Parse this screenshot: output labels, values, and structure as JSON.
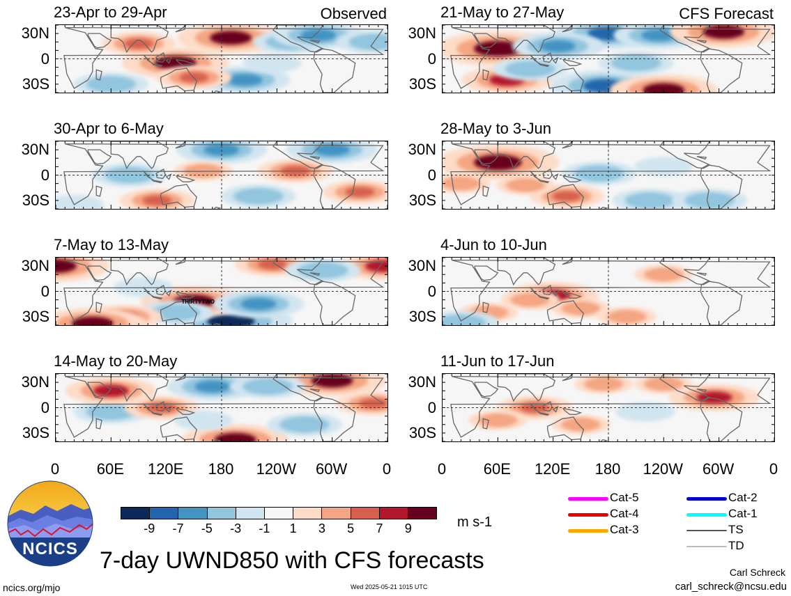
{
  "labels": {
    "observed": "Observed",
    "forecast": "CFS Forecast",
    "units": "m s-1",
    "main_title": "7-day UWND850 with CFS forecasts",
    "url": "ncics.org/mjo",
    "timestamp": "Wed 2025-05-21 1015 UTC",
    "author": "Carl Schreck",
    "email": "carl_schreck@ncsu.edu",
    "logo_text": "NCICS"
  },
  "y_ticks": [
    "30N",
    "0",
    "30S"
  ],
  "x_ticks": [
    "0",
    "60E",
    "120E",
    "180",
    "120W",
    "60W",
    "0"
  ],
  "colorbar": {
    "colors": [
      "#0b2a5a",
      "#2166ac",
      "#4393c3",
      "#92c5de",
      "#d1e5f0",
      "#f7f7f7",
      "#fddbc7",
      "#f4a582",
      "#d6604d",
      "#b2182b",
      "#67001f"
    ],
    "tick_labels": [
      "-9",
      "-7",
      "-5",
      "-3",
      "-1",
      "1",
      "3",
      "5",
      "7",
      "9"
    ]
  },
  "legend": [
    {
      "label": "Cat-5",
      "color": "#ff00ff"
    },
    {
      "label": "Cat-4",
      "color": "#ee0000"
    },
    {
      "label": "Cat-3",
      "color": "#ffa500"
    },
    {
      "label": "Cat-2",
      "color": "#0000dd"
    },
    {
      "label": "Cat-1",
      "color": "#00ffff"
    },
    {
      "label": "TS",
      "color": "#555555"
    },
    {
      "label": "TD",
      "color": "#bbbbbb"
    }
  ],
  "panels": [
    {
      "title": "23-Apr to 29-Apr",
      "kind": "observed",
      "storm": ""
    },
    {
      "title": "21-May to 27-May",
      "kind": "forecast",
      "storm": ""
    },
    {
      "title": "30-Apr to 6-May",
      "kind": "observed",
      "storm": ""
    },
    {
      "title": "28-May to 3-Jun",
      "kind": "forecast",
      "storm": ""
    },
    {
      "title": "7-May to 13-May",
      "kind": "observed",
      "storm": "THIRTYTWO"
    },
    {
      "title": "4-Jun to 10-Jun",
      "kind": "forecast",
      "storm": ""
    },
    {
      "title": "14-May to 20-May",
      "kind": "observed",
      "storm": ""
    },
    {
      "title": "11-Jun to 17-Jun",
      "kind": "forecast",
      "storm": ""
    }
  ],
  "chart_data": {
    "type": "heatmap",
    "variable": "UWND850",
    "units": "m s-1",
    "lon_range": [
      0,
      360
    ],
    "lat_range": [
      -40,
      40
    ],
    "panels": [
      {
        "period": "23-Apr to 29-Apr",
        "source": "Observed",
        "anomalies": [
          {
            "lon": 190,
            "lat": 25,
            "value": 9
          },
          {
            "lon": 130,
            "lat": -5,
            "value": 9
          },
          {
            "lon": 255,
            "lat": 20,
            "value": -5
          },
          {
            "lon": 285,
            "lat": 28,
            "value": -7
          },
          {
            "lon": 60,
            "lat": -30,
            "value": -5
          },
          {
            "lon": 205,
            "lat": -25,
            "value": -7
          },
          {
            "lon": 90,
            "lat": 18,
            "value": 5
          },
          {
            "lon": 150,
            "lat": -22,
            "value": 5
          },
          {
            "lon": 345,
            "lat": 20,
            "value": -5
          },
          {
            "lon": 235,
            "lat": -5,
            "value": -3
          }
        ]
      },
      {
        "period": "21-May to 27-May",
        "source": "CFS Forecast",
        "anomalies": [
          {
            "lon": 60,
            "lat": 12,
            "value": 11
          },
          {
            "lon": 180,
            "lat": 30,
            "value": -9
          },
          {
            "lon": 235,
            "lat": 28,
            "value": -7
          },
          {
            "lon": 305,
            "lat": 32,
            "value": 9
          },
          {
            "lon": 125,
            "lat": 15,
            "value": -7
          },
          {
            "lon": 175,
            "lat": -32,
            "value": -9
          },
          {
            "lon": 240,
            "lat": -37,
            "value": 9
          },
          {
            "lon": 70,
            "lat": -25,
            "value": 7
          },
          {
            "lon": 95,
            "lat": -12,
            "value": -5
          },
          {
            "lon": 210,
            "lat": -5,
            "value": -5
          }
        ]
      },
      {
        "period": "30-Apr to 6-May",
        "source": "Observed",
        "anomalies": [
          {
            "lon": 180,
            "lat": 30,
            "value": -7
          },
          {
            "lon": 300,
            "lat": 30,
            "value": -7
          },
          {
            "lon": 80,
            "lat": 0,
            "value": -5
          },
          {
            "lon": 110,
            "lat": -30,
            "value": 5
          },
          {
            "lon": 220,
            "lat": -25,
            "value": -5
          },
          {
            "lon": 260,
            "lat": 5,
            "value": 5
          },
          {
            "lon": 330,
            "lat": -20,
            "value": 5
          },
          {
            "lon": 160,
            "lat": 5,
            "value": 3
          },
          {
            "lon": 20,
            "lat": -35,
            "value": -3
          }
        ]
      },
      {
        "period": "28-May to 3-Jun",
        "source": "CFS Forecast",
        "anomalies": [
          {
            "lon": 60,
            "lat": 15,
            "value": 11
          },
          {
            "lon": 170,
            "lat": 2,
            "value": -5
          },
          {
            "lon": 135,
            "lat": -25,
            "value": 5
          },
          {
            "lon": 225,
            "lat": -30,
            "value": -5
          },
          {
            "lon": 90,
            "lat": -12,
            "value": 3
          },
          {
            "lon": 290,
            "lat": -30,
            "value": -5
          },
          {
            "lon": 240,
            "lat": 10,
            "value": -3
          },
          {
            "lon": 20,
            "lat": -10,
            "value": 3
          }
        ]
      },
      {
        "period": "7-May to 13-May",
        "source": "Observed",
        "anomalies": [
          {
            "lon": 190,
            "lat": -35,
            "value": -11
          },
          {
            "lon": 150,
            "lat": -12,
            "value": 9
          },
          {
            "lon": 0,
            "lat": 30,
            "value": 9
          },
          {
            "lon": 355,
            "lat": 30,
            "value": 7
          },
          {
            "lon": 235,
            "lat": 32,
            "value": 5
          },
          {
            "lon": 220,
            "lat": -15,
            "value": -7
          },
          {
            "lon": 130,
            "lat": -25,
            "value": -5
          },
          {
            "lon": 75,
            "lat": -30,
            "value": 5
          },
          {
            "lon": 40,
            "lat": -38,
            "value": 9
          },
          {
            "lon": 290,
            "lat": 25,
            "value": -5
          },
          {
            "lon": 95,
            "lat": 5,
            "value": -3
          }
        ]
      },
      {
        "period": "4-Jun to 10-Jun",
        "source": "CFS Forecast",
        "anomalies": [
          {
            "lon": 120,
            "lat": -5,
            "value": 7
          },
          {
            "lon": 95,
            "lat": -10,
            "value": 3
          },
          {
            "lon": 50,
            "lat": -25,
            "value": 3
          },
          {
            "lon": 150,
            "lat": -20,
            "value": 3
          },
          {
            "lon": 20,
            "lat": -37,
            "value": -5
          },
          {
            "lon": 240,
            "lat": 20,
            "value": 3
          },
          {
            "lon": 200,
            "lat": -30,
            "value": 3
          }
        ]
      },
      {
        "period": "14-May to 20-May",
        "source": "Observed",
        "anomalies": [
          {
            "lon": 170,
            "lat": 25,
            "value": -7
          },
          {
            "lon": 300,
            "lat": 32,
            "value": 9
          },
          {
            "lon": 230,
            "lat": 25,
            "value": -5
          },
          {
            "lon": 60,
            "lat": -5,
            "value": -5
          },
          {
            "lon": 195,
            "lat": -38,
            "value": 9
          },
          {
            "lon": 115,
            "lat": 0,
            "value": 5
          },
          {
            "lon": 60,
            "lat": 20,
            "value": 7
          },
          {
            "lon": 270,
            "lat": -20,
            "value": -5
          },
          {
            "lon": 345,
            "lat": 5,
            "value": 5
          },
          {
            "lon": 160,
            "lat": -15,
            "value": -3
          }
        ]
      },
      {
        "period": "11-Jun to 17-Jun",
        "source": "CFS Forecast",
        "anomalies": [
          {
            "lon": 100,
            "lat": 0,
            "value": 5
          },
          {
            "lon": 295,
            "lat": 12,
            "value": 7
          },
          {
            "lon": 175,
            "lat": 28,
            "value": 3
          },
          {
            "lon": 240,
            "lat": 28,
            "value": 3
          },
          {
            "lon": 60,
            "lat": -15,
            "value": 3
          },
          {
            "lon": 150,
            "lat": -20,
            "value": 3
          },
          {
            "lon": 220,
            "lat": -5,
            "value": -3
          }
        ]
      }
    ]
  }
}
